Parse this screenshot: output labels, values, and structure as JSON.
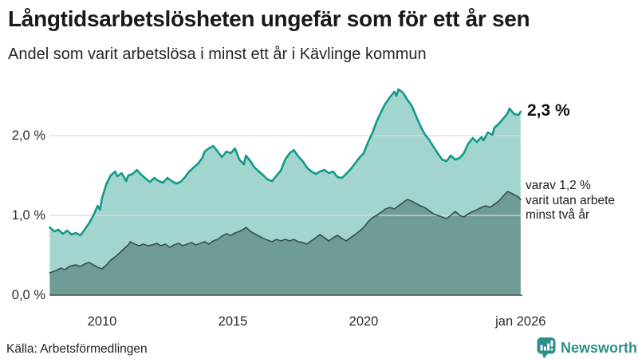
{
  "header": {
    "title": "Långtidsarbetslösheten ungefär som för ett år sen",
    "subtitle": "Andel som varit arbetslösa i minst ett år i Kävlinge kommun"
  },
  "annotations": {
    "latest_total": "2,3 %",
    "secondary": [
      "varav 1,2 %",
      "varit utan arbete",
      "minst två år"
    ]
  },
  "footer": {
    "source": "Källa: Arbetsförmedlingen",
    "brand": "Newsworthy",
    "brand_color": "#2e8f8a"
  },
  "chart_data": {
    "type": "area",
    "title": "Långtidsarbetslösheten ungefär som för ett år sen",
    "subtitle": "Andel som varit arbetslösa i minst ett år i Kävlinge kommun",
    "grid_on": true,
    "legend_position": "none",
    "grid_color": "#d9d9d9",
    "axis_color": "#3e4a46",
    "x_axis": {
      "range": [
        2008,
        2026.07
      ],
      "ticks": [
        {
          "year": 2010,
          "label": "2010"
        },
        {
          "year": 2015,
          "label": "2015"
        },
        {
          "year": 2020,
          "label": "2020"
        },
        {
          "year": 2026,
          "label": "jan 2026"
        }
      ]
    },
    "y_axis": {
      "unit": "%",
      "range": [
        0,
        2.8
      ],
      "gridline_values": [
        1,
        2
      ],
      "ticks": [
        {
          "value": 0,
          "label": "0,0 %"
        },
        {
          "value": 1,
          "label": "1,0 %"
        },
        {
          "value": 2,
          "label": "2,0 %"
        }
      ]
    },
    "series": [
      {
        "name": "Andel som varit arbetslösa i minst ett år",
        "latest_value_label": "2,3 %",
        "latest_value": 2.3,
        "stroke": "#12998a",
        "fill": "#a3d5cf",
        "stroke_width": 2.6,
        "points": [
          [
            2008.0,
            0.85
          ],
          [
            2008.17,
            0.8
          ],
          [
            2008.33,
            0.82
          ],
          [
            2008.5,
            0.77
          ],
          [
            2008.67,
            0.81
          ],
          [
            2008.83,
            0.76
          ],
          [
            2009.0,
            0.78
          ],
          [
            2009.17,
            0.75
          ],
          [
            2009.33,
            0.82
          ],
          [
            2009.5,
            0.9
          ],
          [
            2009.67,
            1.0
          ],
          [
            2009.83,
            1.12
          ],
          [
            2009.92,
            1.07
          ],
          [
            2010.0,
            1.22
          ],
          [
            2010.17,
            1.4
          ],
          [
            2010.33,
            1.5
          ],
          [
            2010.5,
            1.55
          ],
          [
            2010.58,
            1.49
          ],
          [
            2010.75,
            1.53
          ],
          [
            2010.92,
            1.43
          ],
          [
            2011.0,
            1.5
          ],
          [
            2011.17,
            1.52
          ],
          [
            2011.33,
            1.57
          ],
          [
            2011.5,
            1.51
          ],
          [
            2011.67,
            1.46
          ],
          [
            2011.83,
            1.42
          ],
          [
            2012.0,
            1.47
          ],
          [
            2012.17,
            1.43
          ],
          [
            2012.33,
            1.41
          ],
          [
            2012.5,
            1.47
          ],
          [
            2012.67,
            1.43
          ],
          [
            2012.83,
            1.4
          ],
          [
            2013.0,
            1.42
          ],
          [
            2013.17,
            1.48
          ],
          [
            2013.33,
            1.55
          ],
          [
            2013.5,
            1.6
          ],
          [
            2013.67,
            1.65
          ],
          [
            2013.83,
            1.72
          ],
          [
            2013.92,
            1.8
          ],
          [
            2014.08,
            1.84
          ],
          [
            2014.25,
            1.87
          ],
          [
            2014.42,
            1.8
          ],
          [
            2014.58,
            1.73
          ],
          [
            2014.75,
            1.8
          ],
          [
            2014.92,
            1.78
          ],
          [
            2015.08,
            1.84
          ],
          [
            2015.25,
            1.7
          ],
          [
            2015.42,
            1.64
          ],
          [
            2015.5,
            1.75
          ],
          [
            2015.67,
            1.68
          ],
          [
            2015.83,
            1.6
          ],
          [
            2016.0,
            1.55
          ],
          [
            2016.17,
            1.5
          ],
          [
            2016.33,
            1.45
          ],
          [
            2016.5,
            1.43
          ],
          [
            2016.67,
            1.5
          ],
          [
            2016.83,
            1.56
          ],
          [
            2017.0,
            1.7
          ],
          [
            2017.17,
            1.78
          ],
          [
            2017.33,
            1.82
          ],
          [
            2017.5,
            1.74
          ],
          [
            2017.67,
            1.68
          ],
          [
            2017.83,
            1.6
          ],
          [
            2018.0,
            1.55
          ],
          [
            2018.17,
            1.52
          ],
          [
            2018.33,
            1.55
          ],
          [
            2018.5,
            1.57
          ],
          [
            2018.67,
            1.53
          ],
          [
            2018.83,
            1.55
          ],
          [
            2019.0,
            1.48
          ],
          [
            2019.17,
            1.47
          ],
          [
            2019.33,
            1.52
          ],
          [
            2019.5,
            1.58
          ],
          [
            2019.67,
            1.65
          ],
          [
            2019.83,
            1.72
          ],
          [
            2020.0,
            1.78
          ],
          [
            2020.17,
            1.92
          ],
          [
            2020.33,
            2.03
          ],
          [
            2020.5,
            2.18
          ],
          [
            2020.67,
            2.3
          ],
          [
            2020.83,
            2.4
          ],
          [
            2021.0,
            2.48
          ],
          [
            2021.17,
            2.55
          ],
          [
            2021.25,
            2.5
          ],
          [
            2021.33,
            2.58
          ],
          [
            2021.5,
            2.54
          ],
          [
            2021.67,
            2.45
          ],
          [
            2021.83,
            2.38
          ],
          [
            2022.0,
            2.25
          ],
          [
            2022.17,
            2.12
          ],
          [
            2022.33,
            2.02
          ],
          [
            2022.5,
            1.95
          ],
          [
            2022.67,
            1.86
          ],
          [
            2022.83,
            1.78
          ],
          [
            2023.0,
            1.7
          ],
          [
            2023.17,
            1.68
          ],
          [
            2023.33,
            1.75
          ],
          [
            2023.5,
            1.7
          ],
          [
            2023.67,
            1.72
          ],
          [
            2023.83,
            1.78
          ],
          [
            2024.0,
            1.9
          ],
          [
            2024.17,
            1.97
          ],
          [
            2024.33,
            1.92
          ],
          [
            2024.5,
            1.98
          ],
          [
            2024.58,
            1.94
          ],
          [
            2024.75,
            2.04
          ],
          [
            2024.92,
            2.01
          ],
          [
            2025.0,
            2.1
          ],
          [
            2025.17,
            2.15
          ],
          [
            2025.33,
            2.21
          ],
          [
            2025.5,
            2.28
          ],
          [
            2025.58,
            2.34
          ],
          [
            2025.75,
            2.27
          ],
          [
            2025.92,
            2.26
          ],
          [
            2026.0,
            2.3
          ]
        ]
      },
      {
        "name": "varav utan arbete minst två år",
        "latest_value_label": "1,2 %",
        "latest_value": 1.2,
        "stroke": "#37544f",
        "fill": "#709c96",
        "stroke_width": 1.7,
        "points": [
          [
            2008.0,
            0.28
          ],
          [
            2008.25,
            0.31
          ],
          [
            2008.42,
            0.34
          ],
          [
            2008.58,
            0.32
          ],
          [
            2008.75,
            0.36
          ],
          [
            2009.0,
            0.38
          ],
          [
            2009.17,
            0.36
          ],
          [
            2009.33,
            0.39
          ],
          [
            2009.5,
            0.41
          ],
          [
            2009.67,
            0.38
          ],
          [
            2009.83,
            0.35
          ],
          [
            2010.0,
            0.33
          ],
          [
            2010.17,
            0.38
          ],
          [
            2010.33,
            0.44
          ],
          [
            2010.5,
            0.48
          ],
          [
            2010.67,
            0.53
          ],
          [
            2010.83,
            0.58
          ],
          [
            2011.0,
            0.63
          ],
          [
            2011.08,
            0.67
          ],
          [
            2011.25,
            0.64
          ],
          [
            2011.42,
            0.62
          ],
          [
            2011.58,
            0.64
          ],
          [
            2011.75,
            0.62
          ],
          [
            2011.92,
            0.63
          ],
          [
            2012.08,
            0.65
          ],
          [
            2012.25,
            0.62
          ],
          [
            2012.42,
            0.64
          ],
          [
            2012.58,
            0.6
          ],
          [
            2012.75,
            0.63
          ],
          [
            2012.92,
            0.65
          ],
          [
            2013.08,
            0.62
          ],
          [
            2013.25,
            0.64
          ],
          [
            2013.42,
            0.66
          ],
          [
            2013.58,
            0.63
          ],
          [
            2013.75,
            0.65
          ],
          [
            2013.92,
            0.67
          ],
          [
            2014.08,
            0.64
          ],
          [
            2014.25,
            0.68
          ],
          [
            2014.42,
            0.7
          ],
          [
            2014.58,
            0.74
          ],
          [
            2014.75,
            0.77
          ],
          [
            2014.92,
            0.75
          ],
          [
            2015.08,
            0.78
          ],
          [
            2015.25,
            0.8
          ],
          [
            2015.42,
            0.83
          ],
          [
            2015.5,
            0.85
          ],
          [
            2015.67,
            0.8
          ],
          [
            2015.83,
            0.77
          ],
          [
            2016.0,
            0.74
          ],
          [
            2016.17,
            0.71
          ],
          [
            2016.33,
            0.69
          ],
          [
            2016.5,
            0.67
          ],
          [
            2016.67,
            0.7
          ],
          [
            2016.83,
            0.68
          ],
          [
            2017.0,
            0.7
          ],
          [
            2017.17,
            0.68
          ],
          [
            2017.33,
            0.7
          ],
          [
            2017.5,
            0.67
          ],
          [
            2017.67,
            0.66
          ],
          [
            2017.83,
            0.64
          ],
          [
            2018.0,
            0.68
          ],
          [
            2018.17,
            0.72
          ],
          [
            2018.33,
            0.76
          ],
          [
            2018.5,
            0.72
          ],
          [
            2018.67,
            0.68
          ],
          [
            2018.83,
            0.72
          ],
          [
            2019.0,
            0.75
          ],
          [
            2019.17,
            0.71
          ],
          [
            2019.33,
            0.68
          ],
          [
            2019.5,
            0.72
          ],
          [
            2019.67,
            0.76
          ],
          [
            2019.83,
            0.8
          ],
          [
            2020.0,
            0.85
          ],
          [
            2020.17,
            0.92
          ],
          [
            2020.33,
            0.97
          ],
          [
            2020.5,
            1.0
          ],
          [
            2020.67,
            1.04
          ],
          [
            2020.83,
            1.08
          ],
          [
            2021.0,
            1.1
          ],
          [
            2021.17,
            1.08
          ],
          [
            2021.33,
            1.12
          ],
          [
            2021.5,
            1.16
          ],
          [
            2021.67,
            1.2
          ],
          [
            2021.83,
            1.18
          ],
          [
            2022.0,
            1.15
          ],
          [
            2022.17,
            1.12
          ],
          [
            2022.33,
            1.1
          ],
          [
            2022.5,
            1.06
          ],
          [
            2022.67,
            1.02
          ],
          [
            2022.83,
            1.0
          ],
          [
            2023.0,
            0.98
          ],
          [
            2023.17,
            0.96
          ],
          [
            2023.33,
            1.0
          ],
          [
            2023.5,
            1.05
          ],
          [
            2023.67,
            1.0
          ],
          [
            2023.83,
            0.98
          ],
          [
            2024.0,
            1.02
          ],
          [
            2024.17,
            1.05
          ],
          [
            2024.33,
            1.07
          ],
          [
            2024.5,
            1.1
          ],
          [
            2024.67,
            1.12
          ],
          [
            2024.83,
            1.1
          ],
          [
            2025.0,
            1.14
          ],
          [
            2025.17,
            1.18
          ],
          [
            2025.33,
            1.24
          ],
          [
            2025.5,
            1.3
          ],
          [
            2025.58,
            1.29
          ],
          [
            2025.75,
            1.26
          ],
          [
            2025.92,
            1.23
          ],
          [
            2026.0,
            1.2
          ]
        ]
      }
    ]
  }
}
